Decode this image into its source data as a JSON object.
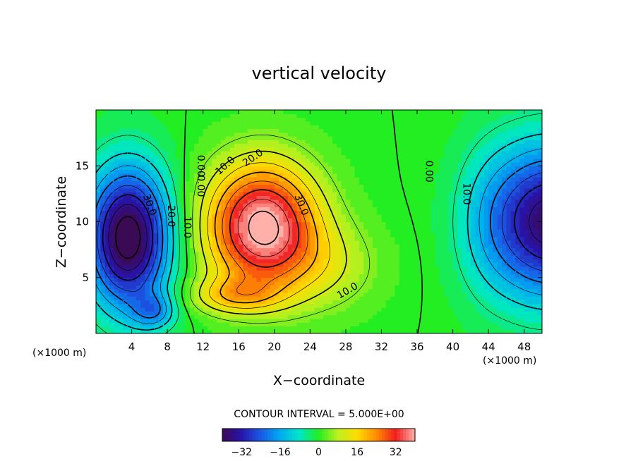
{
  "chart_data": {
    "type": "heatmap",
    "title": "vertical velocity",
    "xlabel": "X−coordinate",
    "ylabel": "Z−coordinate",
    "x_unit": "(×1000 m)",
    "x_unit_right": "(×1000 m)",
    "xlim": [
      0,
      50
    ],
    "ylim": [
      0,
      20
    ],
    "x_ticks": [
      4,
      8,
      12,
      16,
      20,
      24,
      28,
      32,
      36,
      40,
      44,
      48
    ],
    "y_ticks": [
      5,
      10,
      15
    ],
    "contour_interval_text": "CONTOUR INTERVAL = 5.000E+00",
    "contour_interval": 5,
    "color_range": [
      -40,
      40
    ],
    "colorbar_ticks": [
      "−32",
      "−16",
      "0",
      "16",
      "32"
    ],
    "colorbar_tick_values": [
      -32,
      -16,
      0,
      16,
      32
    ],
    "contour_labels": [
      {
        "text": "30.0",
        "x": 6.0,
        "y": 11.5,
        "rot": 70
      },
      {
        "text": "20.0",
        "x": 8.4,
        "y": 10.5,
        "rot": 90
      },
      {
        "text": "10.0",
        "x": 10.2,
        "y": 9.5,
        "rot": 90
      },
      {
        "text": "0.00",
        "x": 11.7,
        "y": 15.0,
        "rot": 90
      },
      {
        "text": "0.00",
        "x": 11.7,
        "y": 13.2,
        "rot": 90
      },
      {
        "text": "10.0",
        "x": 14.5,
        "y": 15.0,
        "rot": -42
      },
      {
        "text": "20.0",
        "x": 17.6,
        "y": 15.7,
        "rot": -35
      },
      {
        "text": "30.0",
        "x": 23.0,
        "y": 11.5,
        "rot": 68
      },
      {
        "text": "10.0",
        "x": 28.2,
        "y": 3.8,
        "rot": -30
      },
      {
        "text": "0.00",
        "x": 37.3,
        "y": 14.5,
        "rot": 90
      },
      {
        "text": "10.0",
        "x": 41.5,
        "y": 12.5,
        "rot": 90
      }
    ],
    "field_model": {
      "updraft": {
        "peak": 40,
        "center": [
          18.6,
          9.0
        ],
        "lobes": "positive core with tails to lower left"
      },
      "downdraft_left": {
        "peak": -40,
        "center": [
          3.6,
          8.5
        ]
      },
      "downdraft_right": {
        "peak": -35,
        "center": [
          50,
          10
        ]
      }
    }
  }
}
